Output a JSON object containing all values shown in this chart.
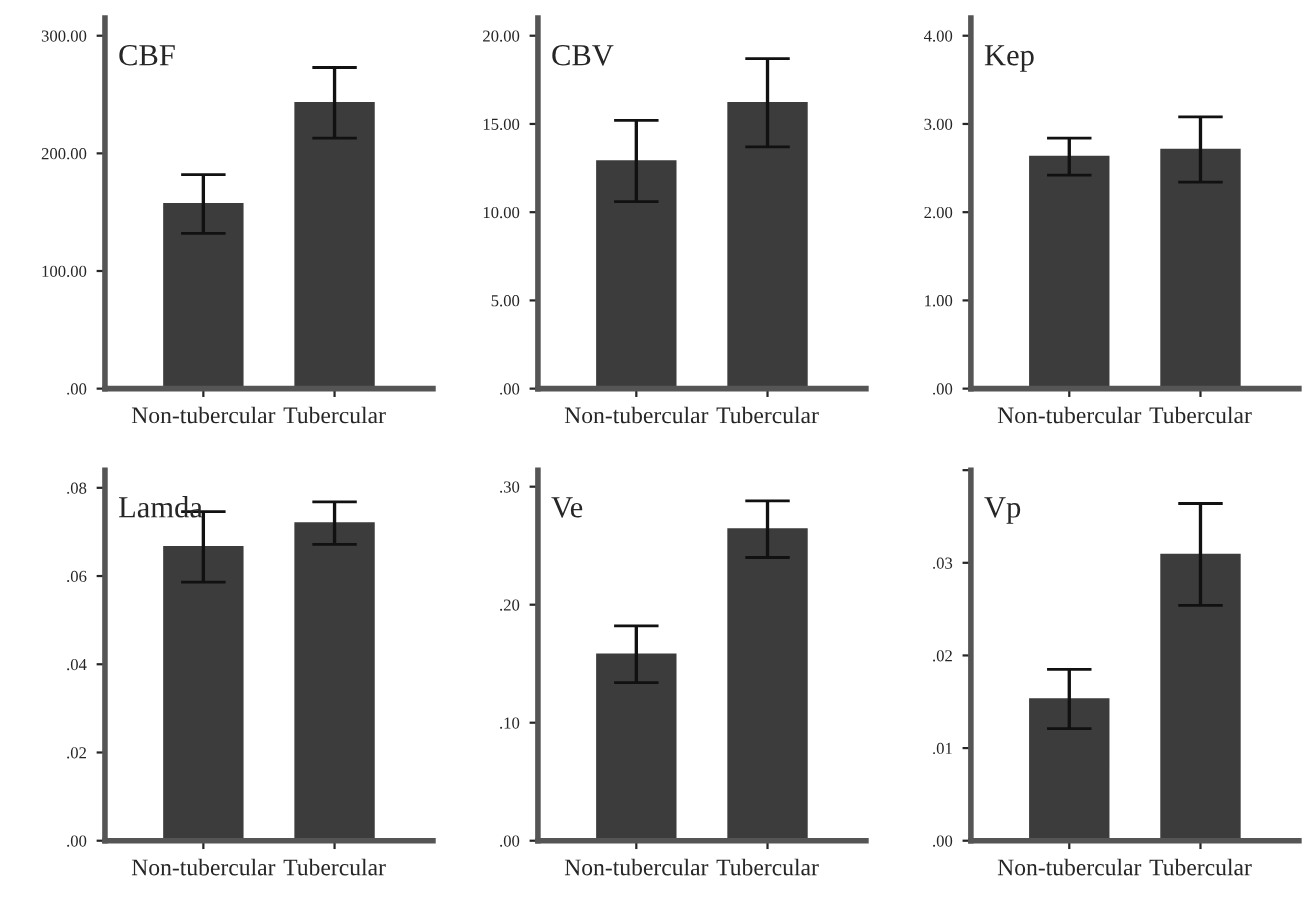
{
  "chart_data": [
    {
      "type": "bar",
      "title": "CBF",
      "categories": [
        "Non-tubercular",
        "Tubercular"
      ],
      "values": [
        157,
        243
      ],
      "errors": [
        25,
        30
      ],
      "color": "#3c3c3c",
      "ylim": [
        0,
        315
      ],
      "yticks": [
        {
          "value": 0,
          "label": ".00"
        },
        {
          "value": 100,
          "label": "100.00"
        },
        {
          "value": 200,
          "label": "200.00"
        },
        {
          "value": 300,
          "label": "300.00"
        }
      ],
      "grid": false,
      "legend": false
    },
    {
      "type": "bar",
      "title": "CBV",
      "categories": [
        "Non-tubercular",
        "Tubercular"
      ],
      "values": [
        12.9,
        16.2
      ],
      "errors": [
        2.3,
        2.5
      ],
      "color": "#3c3c3c",
      "ylim": [
        0,
        21
      ],
      "yticks": [
        {
          "value": 0,
          "label": ".00"
        },
        {
          "value": 5,
          "label": "5.00"
        },
        {
          "value": 10,
          "label": "10.00"
        },
        {
          "value": 15,
          "label": "15.00"
        },
        {
          "value": 20,
          "label": "20.00"
        }
      ],
      "grid": false,
      "legend": false
    },
    {
      "type": "bar",
      "title": "Kep",
      "categories": [
        "Non-tubercular",
        "Tubercular"
      ],
      "values": [
        2.63,
        2.71
      ],
      "errors": [
        0.21,
        0.37
      ],
      "color": "#3c3c3c",
      "ylim": [
        0,
        4.2
      ],
      "yticks": [
        {
          "value": 0,
          "label": ".00"
        },
        {
          "value": 1,
          "label": "1.00"
        },
        {
          "value": 2,
          "label": "2.00"
        },
        {
          "value": 3,
          "label": "3.00"
        },
        {
          "value": 4,
          "label": "4.00"
        }
      ],
      "grid": false,
      "legend": false
    },
    {
      "type": "bar",
      "title": "Lamda",
      "categories": [
        "Non-tubercular",
        "Tubercular"
      ],
      "values": [
        0.0666,
        0.072
      ],
      "errors": [
        0.008,
        0.0048
      ],
      "color": "#3c3c3c",
      "ylim": [
        0,
        0.084
      ],
      "yticks": [
        {
          "value": 0,
          "label": ".00"
        },
        {
          "value": 0.02,
          "label": ".02"
        },
        {
          "value": 0.04,
          "label": ".04"
        },
        {
          "value": 0.06,
          "label": ".06"
        },
        {
          "value": 0.08,
          "label": ".08"
        }
      ],
      "grid": false,
      "legend": false
    },
    {
      "type": "bar",
      "title": "Ve",
      "categories": [
        "Non-tubercular",
        "Tubercular"
      ],
      "values": [
        0.158,
        0.264
      ],
      "errors": [
        0.024,
        0.024
      ],
      "color": "#3c3c3c",
      "ylim": [
        0,
        0.314
      ],
      "yticks": [
        {
          "value": 0,
          "label": ".00"
        },
        {
          "value": 0.1,
          "label": ".10"
        },
        {
          "value": 0.2,
          "label": ".20"
        },
        {
          "value": 0.3,
          "label": ".30"
        }
      ],
      "grid": false,
      "legend": false
    },
    {
      "type": "bar",
      "title": "Vp",
      "categories": [
        "Non-tubercular",
        "Tubercular"
      ],
      "values": [
        0.0153,
        0.0309
      ],
      "errors": [
        0.0032,
        0.0055
      ],
      "color": "#3c3c3c",
      "ylim": [
        0,
        0.04
      ],
      "yticks": [
        {
          "value": 0,
          "label": ".00"
        },
        {
          "value": 0.01,
          "label": ".01"
        },
        {
          "value": 0.02,
          "label": ".02"
        },
        {
          "value": 0.03,
          "label": ".03"
        },
        {
          "value": 0.04,
          "label": null
        }
      ],
      "grid": false,
      "legend": false
    }
  ]
}
